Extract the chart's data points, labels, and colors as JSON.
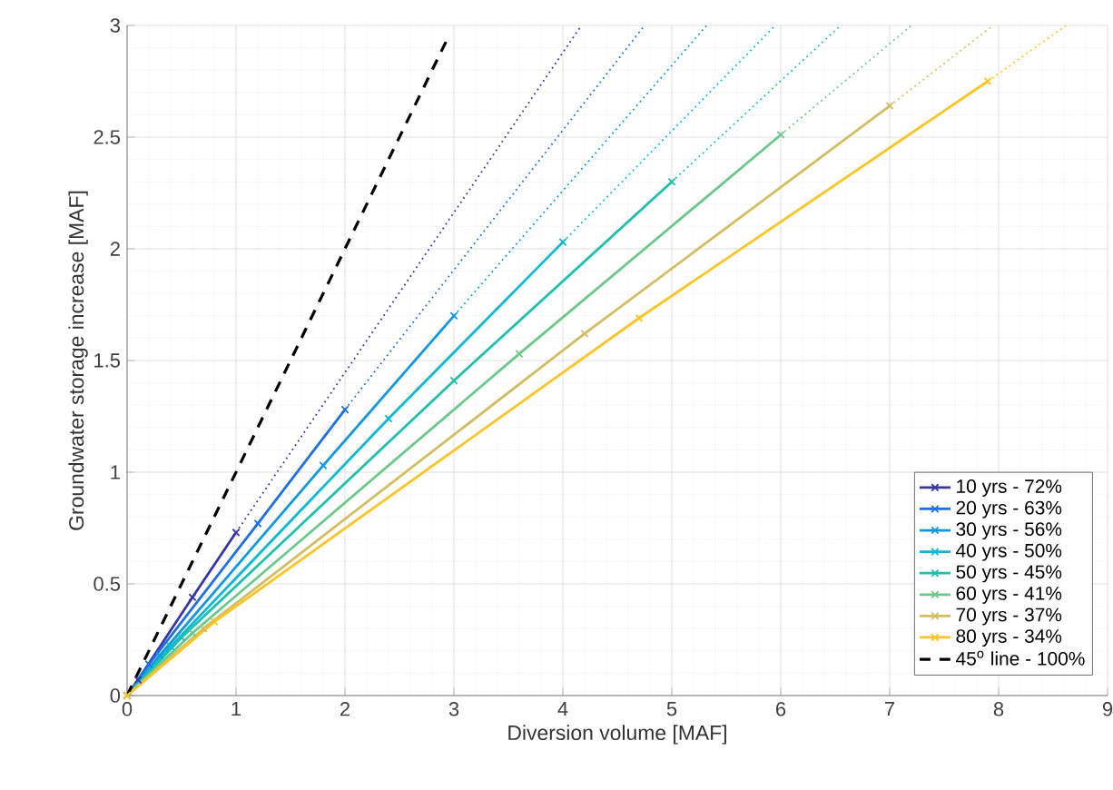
{
  "chart_data": {
    "type": "line",
    "xlabel": "Diversion volume [MAF]",
    "ylabel": "Groundwater storage increase [MAF]",
    "xlim": [
      0,
      9
    ],
    "xticks": [
      0,
      1,
      2,
      3,
      4,
      5,
      6,
      7,
      8,
      9
    ],
    "ylim": [
      0,
      3
    ],
    "yticks": [
      0,
      0.5,
      1,
      1.5,
      2,
      2.5,
      3
    ],
    "grid": true,
    "legend": "bottom right",
    "marker": "cross",
    "series": [
      {
        "name": "10 yrs - 72%",
        "color": "#3a35a6",
        "x": [
          0,
          0.1,
          0.6,
          1.0
        ],
        "values": [
          0,
          0.07,
          0.44,
          0.73
        ]
      },
      {
        "name": "20 yrs - 63%",
        "color": "#1b6fe8",
        "x": [
          0,
          0.2,
          1.2,
          2.0
        ],
        "values": [
          0,
          0.14,
          0.77,
          1.28
        ]
      },
      {
        "name": "30 yrs - 56%",
        "color": "#0d98e0",
        "x": [
          0,
          0.3,
          1.8,
          3.0
        ],
        "values": [
          0,
          0.18,
          1.03,
          1.7
        ]
      },
      {
        "name": "40 yrs - 50%",
        "color": "#0ab8d8",
        "x": [
          0,
          0.4,
          2.4,
          4.0
        ],
        "values": [
          0,
          0.22,
          1.24,
          2.03
        ]
      },
      {
        "name": "50 yrs - 45%",
        "color": "#1fbfad",
        "x": [
          0,
          0.5,
          3.0,
          5.0
        ],
        "values": [
          0,
          0.26,
          1.41,
          2.3
        ]
      },
      {
        "name": "60 yrs - 41%",
        "color": "#6cc88a",
        "x": [
          0,
          0.6,
          3.6,
          6.0
        ],
        "values": [
          0,
          0.28,
          1.53,
          2.51
        ]
      },
      {
        "name": "70 yrs - 37%",
        "color": "#d3bd63",
        "x": [
          0,
          0.7,
          4.2,
          7.0
        ],
        "values": [
          0,
          0.3,
          1.62,
          2.64
        ]
      },
      {
        "name": "80 yrs - 34%",
        "color": "#fcc525",
        "x": [
          0,
          0.8,
          4.7,
          7.9
        ],
        "values": [
          0,
          0.33,
          1.69,
          2.75
        ]
      },
      {
        "name": "45$^{o}$ line - 100%",
        "color": "#000000",
        "line_style": "dashed",
        "marker": "none",
        "x": [
          0,
          2.95
        ],
        "values": [
          0,
          2.95
        ]
      },
      {
        "color": "#3a35a6",
        "line_style": "dotted",
        "marker": "none",
        "x": [
          1.0,
          4.17
        ],
        "values": [
          0.73,
          3
        ]
      },
      {
        "color": "#1b6fe8",
        "line_style": "dotted",
        "marker": "none",
        "x": [
          2.0,
          4.75
        ],
        "values": [
          1.28,
          3
        ]
      },
      {
        "color": "#0d98e0",
        "line_style": "dotted",
        "marker": "none",
        "x": [
          3.0,
          5.32
        ],
        "values": [
          1.7,
          3
        ]
      },
      {
        "color": "#0ab8d8",
        "line_style": "dotted",
        "marker": "none",
        "x": [
          4.0,
          5.95
        ],
        "values": [
          2.03,
          3
        ]
      },
      {
        "color": "#1fbfad",
        "line_style": "dotted",
        "marker": "none",
        "x": [
          5.0,
          6.55
        ],
        "values": [
          2.3,
          3
        ]
      },
      {
        "color": "#6cc88a",
        "line_style": "dotted",
        "marker": "none",
        "x": [
          6.0,
          7.2
        ],
        "values": [
          2.51,
          3
        ]
      },
      {
        "color": "#d3bd63",
        "line_style": "dotted",
        "marker": "none",
        "x": [
          7.0,
          7.95
        ],
        "values": [
          2.64,
          3
        ]
      },
      {
        "color": "#fcc525",
        "line_style": "dotted",
        "marker": "none",
        "x": [
          7.9,
          8.62
        ],
        "values": [
          2.75,
          3
        ]
      }
    ]
  }
}
